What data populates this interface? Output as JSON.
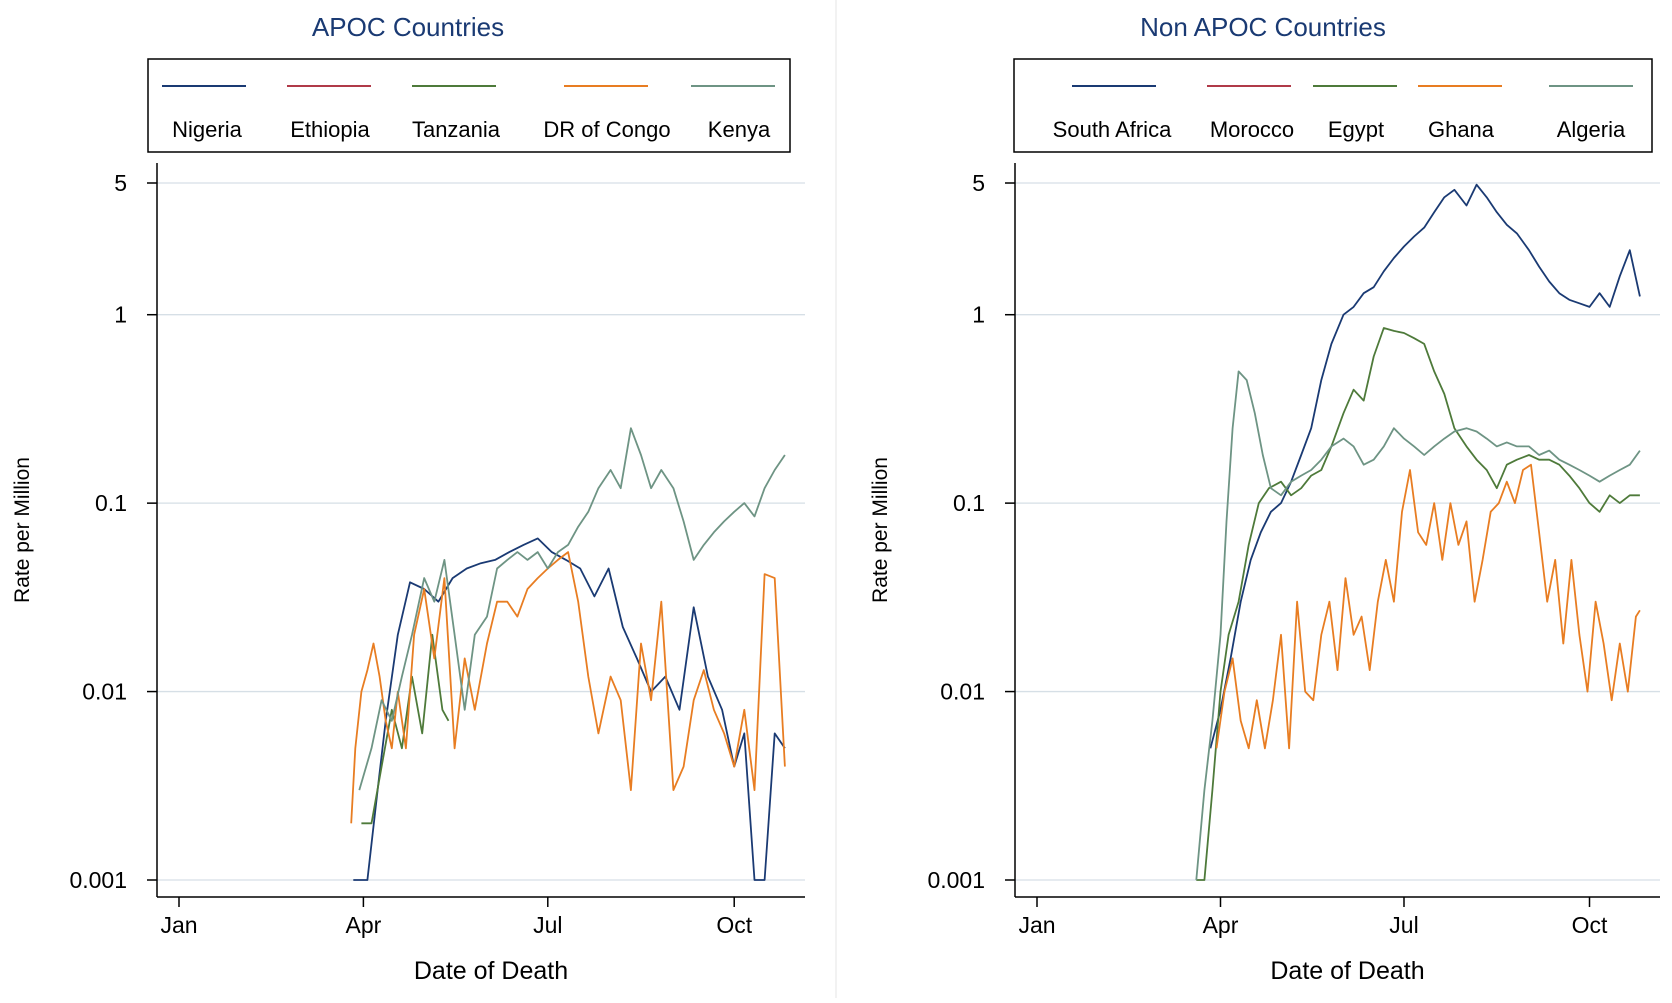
{
  "chart_data": [
    {
      "type": "line",
      "title": "APOC Countries",
      "xlabel": "Date of Death",
      "ylabel": "Rate per Million",
      "y_scale": "log",
      "ylim": [
        0.001,
        5
      ],
      "yticks": [
        {
          "value": 5,
          "label": "5"
        },
        {
          "value": 1,
          "label": "1"
        },
        {
          "value": 0.1,
          "label": "0.1"
        },
        {
          "value": 0.01,
          "label": "0.01"
        },
        {
          "value": 0.001,
          "label": "0.001"
        }
      ],
      "xlim": [
        "2020-01-01",
        "2020-10-31"
      ],
      "xticks": [
        {
          "value": "2020-01-01",
          "label": "Jan"
        },
        {
          "value": "2020-04-01",
          "label": "Apr"
        },
        {
          "value": "2020-07-01",
          "label": "Jul"
        },
        {
          "value": "2020-10-01",
          "label": "Oct"
        }
      ],
      "grid": true,
      "legend_position": "top",
      "series": [
        {
          "name": "Nigeria",
          "color": "#1a3a73",
          "x": [
            "2020-03-27",
            "2020-04-03",
            "2020-04-08",
            "2020-04-12",
            "2020-04-18",
            "2020-04-24",
            "2020-05-01",
            "2020-05-08",
            "2020-05-15",
            "2020-05-22",
            "2020-05-29",
            "2020-06-05",
            "2020-06-12",
            "2020-06-19",
            "2020-06-26",
            "2020-07-03",
            "2020-07-10",
            "2020-07-17",
            "2020-07-24",
            "2020-07-31",
            "2020-08-07",
            "2020-08-14",
            "2020-08-21",
            "2020-08-28",
            "2020-09-04",
            "2020-09-11",
            "2020-09-18",
            "2020-09-25",
            "2020-10-01",
            "2020-10-06",
            "2020-10-11",
            "2020-10-16",
            "2020-10-21",
            "2020-10-26"
          ],
          "y": [
            0.001,
            0.001,
            0.003,
            0.007,
            0.02,
            0.038,
            0.035,
            0.03,
            0.04,
            0.045,
            0.048,
            0.05,
            0.055,
            0.06,
            0.065,
            0.055,
            0.05,
            0.045,
            0.032,
            0.045,
            0.022,
            0.015,
            0.01,
            0.012,
            0.008,
            0.028,
            0.012,
            0.008,
            0.004,
            0.006,
            0.001,
            0.001,
            0.006,
            0.005
          ]
        },
        {
          "name": "Ethiopia",
          "color": "#b03a48",
          "x": [],
          "y": []
        },
        {
          "name": "Tanzania",
          "color": "#4e7a3a",
          "x": [
            "2020-03-31",
            "2020-04-05",
            "2020-04-10",
            "2020-04-15",
            "2020-04-20",
            "2020-04-25",
            "2020-04-30",
            "2020-05-05",
            "2020-05-10",
            "2020-05-13"
          ],
          "y": [
            0.002,
            0.002,
            0.004,
            0.008,
            0.005,
            0.012,
            0.006,
            0.02,
            0.008,
            0.007
          ]
        },
        {
          "name": "DR of Congo",
          "color": "#e87d22",
          "x": [
            "2020-03-26",
            "2020-03-28",
            "2020-03-31",
            "2020-04-03",
            "2020-04-06",
            "2020-04-09",
            "2020-04-12",
            "2020-04-15",
            "2020-04-18",
            "2020-04-22",
            "2020-04-26",
            "2020-05-01",
            "2020-05-06",
            "2020-05-11",
            "2020-05-16",
            "2020-05-21",
            "2020-05-26",
            "2020-06-01",
            "2020-06-06",
            "2020-06-11",
            "2020-06-16",
            "2020-06-21",
            "2020-06-26",
            "2020-07-01",
            "2020-07-06",
            "2020-07-11",
            "2020-07-16",
            "2020-07-21",
            "2020-07-26",
            "2020-08-01",
            "2020-08-06",
            "2020-08-11",
            "2020-08-16",
            "2020-08-21",
            "2020-08-26",
            "2020-09-01",
            "2020-09-06",
            "2020-09-11",
            "2020-09-16",
            "2020-09-21",
            "2020-09-26",
            "2020-10-01",
            "2020-10-06",
            "2020-10-11",
            "2020-10-16",
            "2020-10-21",
            "2020-10-26"
          ],
          "y": [
            0.002,
            0.005,
            0.01,
            0.013,
            0.018,
            0.012,
            0.007,
            0.005,
            0.01,
            0.005,
            0.02,
            0.035,
            0.015,
            0.04,
            0.005,
            0.015,
            0.008,
            0.018,
            0.03,
            0.03,
            0.025,
            0.035,
            0.04,
            0.045,
            0.05,
            0.055,
            0.03,
            0.012,
            0.006,
            0.012,
            0.009,
            0.003,
            0.018,
            0.009,
            0.03,
            0.003,
            0.004,
            0.009,
            0.013,
            0.008,
            0.006,
            0.004,
            0.008,
            0.003,
            0.042,
            0.04,
            0.004
          ]
        },
        {
          "name": "Kenya",
          "color": "#6e9484",
          "x": [
            "2020-03-30",
            "2020-04-05",
            "2020-04-10",
            "2020-04-15",
            "2020-04-20",
            "2020-04-25",
            "2020-05-01",
            "2020-05-06",
            "2020-05-11",
            "2020-05-16",
            "2020-05-21",
            "2020-05-26",
            "2020-06-01",
            "2020-06-06",
            "2020-06-11",
            "2020-06-16",
            "2020-06-21",
            "2020-06-26",
            "2020-07-01",
            "2020-07-06",
            "2020-07-11",
            "2020-07-16",
            "2020-07-21",
            "2020-07-26",
            "2020-08-01",
            "2020-08-06",
            "2020-08-11",
            "2020-08-16",
            "2020-08-21",
            "2020-08-26",
            "2020-09-01",
            "2020-09-06",
            "2020-09-11",
            "2020-09-16",
            "2020-09-21",
            "2020-09-26",
            "2020-10-01",
            "2020-10-06",
            "2020-10-11",
            "2020-10-16",
            "2020-10-21",
            "2020-10-26"
          ],
          "y": [
            0.003,
            0.005,
            0.009,
            0.007,
            0.012,
            0.02,
            0.04,
            0.03,
            0.05,
            0.02,
            0.008,
            0.02,
            0.025,
            0.045,
            0.05,
            0.055,
            0.05,
            0.055,
            0.045,
            0.055,
            0.06,
            0.075,
            0.09,
            0.12,
            0.15,
            0.12,
            0.25,
            0.18,
            0.12,
            0.15,
            0.12,
            0.08,
            0.05,
            0.06,
            0.07,
            0.08,
            0.09,
            0.1,
            0.085,
            0.12,
            0.15,
            0.18
          ]
        }
      ]
    },
    {
      "type": "line",
      "title": "Non APOC Countries",
      "xlabel": "Date of Death",
      "ylabel": "Rate per Million",
      "y_scale": "log",
      "ylim": [
        0.001,
        5
      ],
      "yticks": [
        {
          "value": 5,
          "label": "5"
        },
        {
          "value": 1,
          "label": "1"
        },
        {
          "value": 0.1,
          "label": "0.1"
        },
        {
          "value": 0.01,
          "label": "0.01"
        },
        {
          "value": 0.001,
          "label": "0.001"
        }
      ],
      "xlim": [
        "2020-01-01",
        "2020-10-31"
      ],
      "xticks": [
        {
          "value": "2020-01-01",
          "label": "Jan"
        },
        {
          "value": "2020-04-01",
          "label": "Apr"
        },
        {
          "value": "2020-07-01",
          "label": "Jul"
        },
        {
          "value": "2020-10-01",
          "label": "Oct"
        }
      ],
      "grid": true,
      "legend_position": "top",
      "series": [
        {
          "name": "South Africa",
          "color": "#1a3a73",
          "x": [
            "2020-03-27",
            "2020-04-01",
            "2020-04-06",
            "2020-04-11",
            "2020-04-16",
            "2020-04-21",
            "2020-04-26",
            "2020-05-01",
            "2020-05-06",
            "2020-05-11",
            "2020-05-16",
            "2020-05-21",
            "2020-05-26",
            "2020-06-01",
            "2020-06-06",
            "2020-06-11",
            "2020-06-16",
            "2020-06-21",
            "2020-06-26",
            "2020-07-01",
            "2020-07-06",
            "2020-07-11",
            "2020-07-16",
            "2020-07-21",
            "2020-07-26",
            "2020-08-01",
            "2020-08-06",
            "2020-08-11",
            "2020-08-16",
            "2020-08-21",
            "2020-08-26",
            "2020-09-01",
            "2020-09-06",
            "2020-09-11",
            "2020-09-16",
            "2020-09-21",
            "2020-09-26",
            "2020-10-01",
            "2020-10-06",
            "2020-10-11",
            "2020-10-16",
            "2020-10-21",
            "2020-10-26"
          ],
          "y": [
            0.005,
            0.008,
            0.015,
            0.03,
            0.05,
            0.07,
            0.09,
            0.1,
            0.13,
            0.18,
            0.25,
            0.45,
            0.7,
            1.0,
            1.1,
            1.3,
            1.4,
            1.7,
            2.0,
            2.3,
            2.6,
            2.9,
            3.5,
            4.2,
            4.6,
            3.8,
            4.9,
            4.2,
            3.5,
            3.0,
            2.7,
            2.2,
            1.8,
            1.5,
            1.3,
            1.2,
            1.15,
            1.1,
            1.3,
            1.1,
            1.6,
            2.2,
            1.25
          ]
        },
        {
          "name": "Morocco",
          "color": "#b03a48",
          "x": [],
          "y": []
        },
        {
          "name": "Egypt",
          "color": "#4e7a3a",
          "x": [
            "2020-03-20",
            "2020-03-24",
            "2020-03-28",
            "2020-04-01",
            "2020-04-05",
            "2020-04-10",
            "2020-04-15",
            "2020-04-20",
            "2020-04-25",
            "2020-05-01",
            "2020-05-06",
            "2020-05-11",
            "2020-05-16",
            "2020-05-21",
            "2020-05-26",
            "2020-06-01",
            "2020-06-06",
            "2020-06-11",
            "2020-06-16",
            "2020-06-21",
            "2020-06-26",
            "2020-07-01",
            "2020-07-06",
            "2020-07-11",
            "2020-07-16",
            "2020-07-21",
            "2020-07-26",
            "2020-08-01",
            "2020-08-06",
            "2020-08-11",
            "2020-08-16",
            "2020-08-21",
            "2020-08-26",
            "2020-09-01",
            "2020-09-06",
            "2020-09-11",
            "2020-09-16",
            "2020-09-21",
            "2020-09-26",
            "2020-10-01",
            "2020-10-06",
            "2020-10-11",
            "2020-10-16",
            "2020-10-21",
            "2020-10-26"
          ],
          "y": [
            0.001,
            0.001,
            0.003,
            0.01,
            0.02,
            0.03,
            0.06,
            0.1,
            0.12,
            0.13,
            0.11,
            0.12,
            0.14,
            0.15,
            0.2,
            0.3,
            0.4,
            0.35,
            0.6,
            0.85,
            0.82,
            0.8,
            0.75,
            0.7,
            0.5,
            0.38,
            0.25,
            0.2,
            0.17,
            0.15,
            0.12,
            0.16,
            0.17,
            0.18,
            0.17,
            0.17,
            0.16,
            0.14,
            0.12,
            0.1,
            0.09,
            0.11,
            0.1,
            0.11,
            0.11
          ]
        },
        {
          "name": "Ghana",
          "color": "#e87d22",
          "x": [
            "2020-03-30",
            "2020-04-03",
            "2020-04-07",
            "2020-04-11",
            "2020-04-15",
            "2020-04-19",
            "2020-04-23",
            "2020-04-27",
            "2020-05-01",
            "2020-05-05",
            "2020-05-09",
            "2020-05-13",
            "2020-05-17",
            "2020-05-21",
            "2020-05-25",
            "2020-05-29",
            "2020-06-02",
            "2020-06-06",
            "2020-06-10",
            "2020-06-14",
            "2020-06-18",
            "2020-06-22",
            "2020-06-26",
            "2020-06-30",
            "2020-07-04",
            "2020-07-08",
            "2020-07-12",
            "2020-07-16",
            "2020-07-20",
            "2020-07-24",
            "2020-07-28",
            "2020-08-01",
            "2020-08-05",
            "2020-08-09",
            "2020-08-13",
            "2020-08-17",
            "2020-08-21",
            "2020-08-25",
            "2020-08-29",
            "2020-09-02",
            "2020-09-06",
            "2020-09-10",
            "2020-09-14",
            "2020-09-18",
            "2020-09-22",
            "2020-09-26",
            "2020-09-30",
            "2020-10-04",
            "2020-10-08",
            "2020-10-12",
            "2020-10-16",
            "2020-10-20",
            "2020-10-24",
            "2020-10-26"
          ],
          "y": [
            0.005,
            0.01,
            0.015,
            0.007,
            0.005,
            0.009,
            0.005,
            0.009,
            0.02,
            0.005,
            0.03,
            0.01,
            0.009,
            0.02,
            0.03,
            0.013,
            0.04,
            0.02,
            0.025,
            0.013,
            0.03,
            0.05,
            0.03,
            0.09,
            0.15,
            0.07,
            0.06,
            0.1,
            0.05,
            0.1,
            0.06,
            0.08,
            0.03,
            0.05,
            0.09,
            0.1,
            0.13,
            0.1,
            0.15,
            0.16,
            0.07,
            0.03,
            0.05,
            0.018,
            0.05,
            0.02,
            0.01,
            0.03,
            0.018,
            0.009,
            0.018,
            0.01,
            0.025,
            0.027
          ]
        },
        {
          "name": "Algeria",
          "color": "#6e9484",
          "x": [
            "2020-03-20",
            "2020-03-24",
            "2020-03-28",
            "2020-04-01",
            "2020-04-04",
            "2020-04-07",
            "2020-04-10",
            "2020-04-14",
            "2020-04-18",
            "2020-04-22",
            "2020-04-26",
            "2020-05-01",
            "2020-05-06",
            "2020-05-11",
            "2020-05-16",
            "2020-05-21",
            "2020-05-26",
            "2020-06-01",
            "2020-06-06",
            "2020-06-11",
            "2020-06-16",
            "2020-06-21",
            "2020-06-26",
            "2020-07-01",
            "2020-07-06",
            "2020-07-11",
            "2020-07-16",
            "2020-07-21",
            "2020-07-26",
            "2020-08-01",
            "2020-08-06",
            "2020-08-11",
            "2020-08-16",
            "2020-08-21",
            "2020-08-26",
            "2020-09-01",
            "2020-09-06",
            "2020-09-11",
            "2020-09-16",
            "2020-09-21",
            "2020-09-26",
            "2020-10-01",
            "2020-10-06",
            "2020-10-11",
            "2020-10-16",
            "2020-10-21",
            "2020-10-26"
          ],
          "y": [
            0.001,
            0.003,
            0.007,
            0.02,
            0.08,
            0.25,
            0.5,
            0.45,
            0.3,
            0.18,
            0.12,
            0.11,
            0.13,
            0.14,
            0.15,
            0.17,
            0.2,
            0.22,
            0.2,
            0.16,
            0.17,
            0.2,
            0.25,
            0.22,
            0.2,
            0.18,
            0.2,
            0.22,
            0.24,
            0.25,
            0.24,
            0.22,
            0.2,
            0.21,
            0.2,
            0.2,
            0.18,
            0.19,
            0.17,
            0.16,
            0.15,
            0.14,
            0.13,
            0.14,
            0.15,
            0.16,
            0.19
          ]
        }
      ]
    }
  ]
}
